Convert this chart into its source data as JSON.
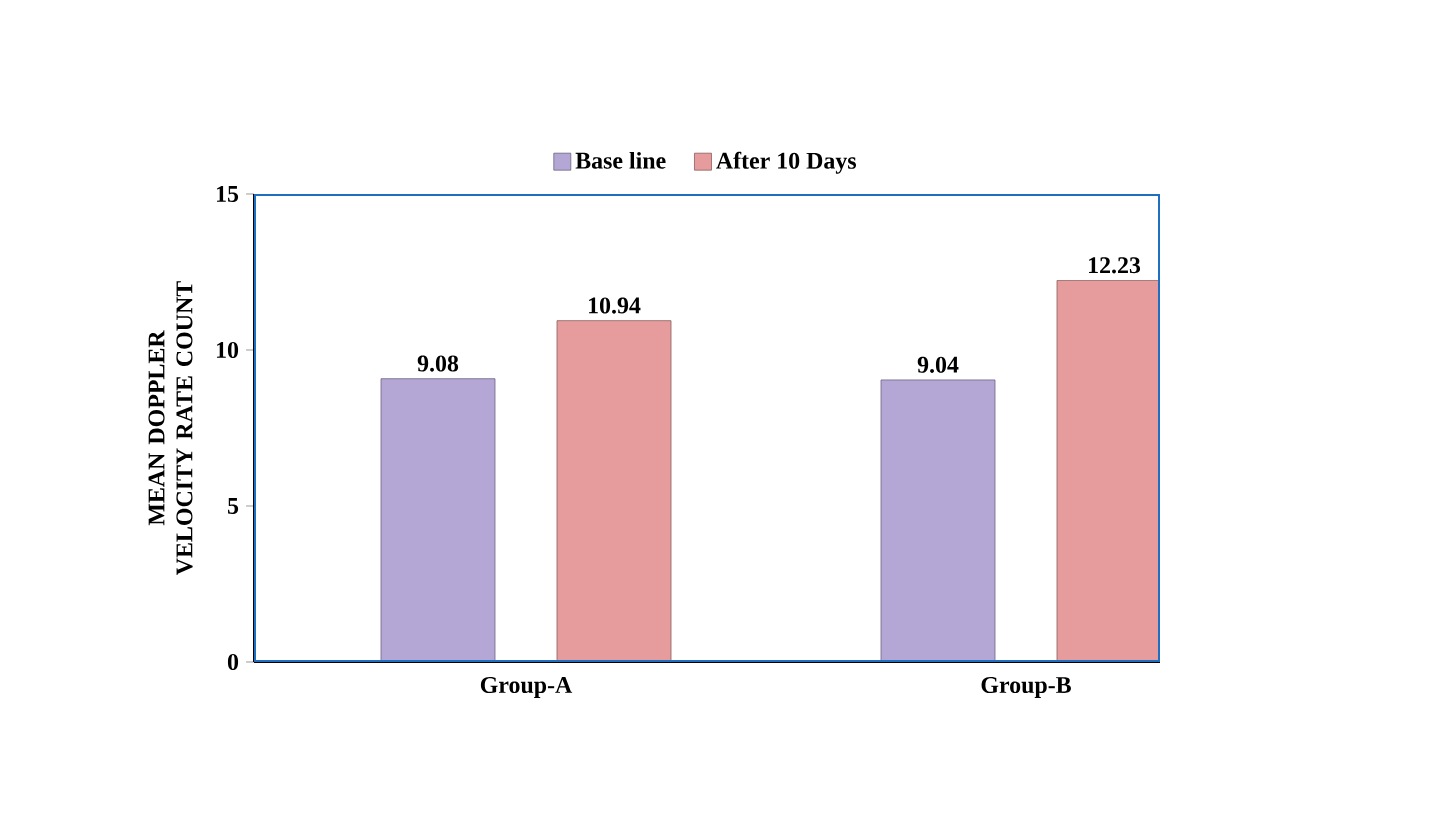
{
  "chart_data": {
    "type": "bar",
    "categories": [
      "Group-A",
      "Group-B"
    ],
    "series": [
      {
        "name": "Base line",
        "color": "#b4a7d6",
        "values": [
          9.08,
          9.04
        ]
      },
      {
        "name": "After 10 Days",
        "color": "#e69c9c",
        "values": [
          10.94,
          12.23
        ]
      }
    ],
    "ylabel": "MEAN DOPPLER VELOCITY RATE COUNT",
    "ylim": [
      0,
      15
    ],
    "yticks": [
      0,
      5,
      10,
      15
    ],
    "data_labels": true,
    "legend": "top",
    "grid": false
  }
}
